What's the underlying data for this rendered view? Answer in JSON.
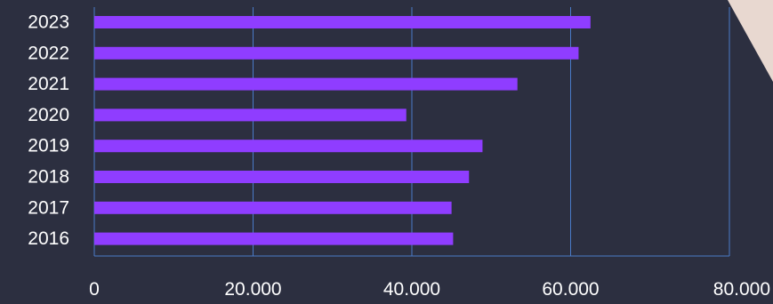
{
  "chart_data": {
    "type": "bar",
    "orientation": "horizontal",
    "categories": [
      "2023",
      "2022",
      "2021",
      "2020",
      "2019",
      "2018",
      "2017",
      "2016"
    ],
    "values": [
      62500,
      61000,
      53300,
      39300,
      48900,
      47200,
      45000,
      45200
    ],
    "xlim": [
      0,
      80000
    ],
    "xticks": [
      0,
      20000,
      40000,
      60000,
      80000
    ],
    "xtick_labels": [
      "0",
      "20.000",
      "40.000",
      "60.000",
      "80.000"
    ],
    "grid": "vertical",
    "legend": "none",
    "title": "",
    "xlabel": "",
    "ylabel": "",
    "colors": {
      "bar": "#8f3dff",
      "background": "#2c2f40",
      "grid": "#4a7bc8",
      "text": "#ffffff",
      "corner_shape": "#e8d8d0"
    }
  }
}
